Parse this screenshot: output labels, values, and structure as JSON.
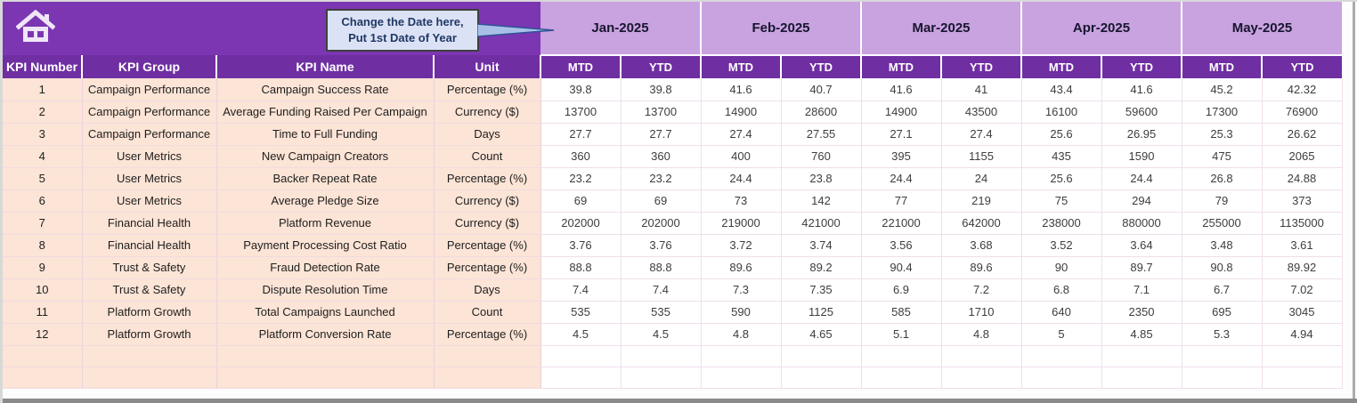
{
  "header": {
    "callout": {
      "line1": "Change the Date here,",
      "line2": "Put 1st Date of Year"
    },
    "months": [
      "Jan-2025",
      "Feb-2025",
      "Mar-2025",
      "Apr-2025",
      "May-2025"
    ],
    "mtd_label": "MTD",
    "ytd_label": "YTD",
    "kpi_columns": [
      "KPI Number",
      "KPI Group",
      "KPI Name",
      "Unit"
    ]
  },
  "rows": [
    {
      "number": "1",
      "group": "Campaign Performance",
      "name": "Campaign Success Rate",
      "unit": "Percentage (%)",
      "values": [
        "39.8",
        "39.8",
        "41.6",
        "40.7",
        "41.6",
        "41",
        "43.4",
        "41.6",
        "45.2",
        "42.32"
      ]
    },
    {
      "number": "2",
      "group": "Campaign Performance",
      "name": "Average Funding Raised Per Campaign",
      "unit": "Currency ($)",
      "values": [
        "13700",
        "13700",
        "14900",
        "28600",
        "14900",
        "43500",
        "16100",
        "59600",
        "17300",
        "76900"
      ]
    },
    {
      "number": "3",
      "group": "Campaign Performance",
      "name": "Time to Full Funding",
      "unit": "Days",
      "values": [
        "27.7",
        "27.7",
        "27.4",
        "27.55",
        "27.1",
        "27.4",
        "25.6",
        "26.95",
        "25.3",
        "26.62"
      ]
    },
    {
      "number": "4",
      "group": "User Metrics",
      "name": "New Campaign Creators",
      "unit": "Count",
      "values": [
        "360",
        "360",
        "400",
        "760",
        "395",
        "1155",
        "435",
        "1590",
        "475",
        "2065"
      ]
    },
    {
      "number": "5",
      "group": "User Metrics",
      "name": "Backer Repeat Rate",
      "unit": "Percentage (%)",
      "values": [
        "23.2",
        "23.2",
        "24.4",
        "23.8",
        "24.4",
        "24",
        "25.6",
        "24.4",
        "26.8",
        "24.88"
      ]
    },
    {
      "number": "6",
      "group": "User Metrics",
      "name": "Average Pledge Size",
      "unit": "Currency ($)",
      "values": [
        "69",
        "69",
        "73",
        "142",
        "77",
        "219",
        "75",
        "294",
        "79",
        "373"
      ]
    },
    {
      "number": "7",
      "group": "Financial Health",
      "name": "Platform Revenue",
      "unit": "Currency ($)",
      "values": [
        "202000",
        "202000",
        "219000",
        "421000",
        "221000",
        "642000",
        "238000",
        "880000",
        "255000",
        "1135000"
      ]
    },
    {
      "number": "8",
      "group": "Financial Health",
      "name": "Payment Processing Cost Ratio",
      "unit": "Percentage (%)",
      "values": [
        "3.76",
        "3.76",
        "3.72",
        "3.74",
        "3.56",
        "3.68",
        "3.52",
        "3.64",
        "3.48",
        "3.61"
      ]
    },
    {
      "number": "9",
      "group": "Trust & Safety",
      "name": "Fraud Detection Rate",
      "unit": "Percentage (%)",
      "values": [
        "88.8",
        "88.8",
        "89.6",
        "89.2",
        "90.4",
        "89.6",
        "90",
        "89.7",
        "90.8",
        "89.92"
      ]
    },
    {
      "number": "10",
      "group": "Trust & Safety",
      "name": "Dispute Resolution Time",
      "unit": "Days",
      "values": [
        "7.4",
        "7.4",
        "7.3",
        "7.35",
        "6.9",
        "7.2",
        "6.8",
        "7.1",
        "6.7",
        "7.02"
      ]
    },
    {
      "number": "11",
      "group": "Platform Growth",
      "name": "Total Campaigns Launched",
      "unit": "Count",
      "values": [
        "535",
        "535",
        "590",
        "1125",
        "585",
        "1710",
        "640",
        "2350",
        "695",
        "3045"
      ]
    },
    {
      "number": "12",
      "group": "Platform Growth",
      "name": "Platform Conversion Rate",
      "unit": "Percentage (%)",
      "values": [
        "4.5",
        "4.5",
        "4.8",
        "4.65",
        "5.1",
        "4.8",
        "5",
        "4.85",
        "5.3",
        "4.94"
      ]
    }
  ],
  "empty_rows": 2,
  "colors": {
    "band_purple": "#7C36B2",
    "header_purple": "#6F2EA2",
    "month_lavender": "#C9A2E0",
    "row_pink": "#FCE4D6",
    "callout_fill": "#DCE2F5",
    "callout_text": "#1F3864",
    "arrow_blue": "#A8C0E8",
    "arrow_edge": "#2E5395"
  }
}
